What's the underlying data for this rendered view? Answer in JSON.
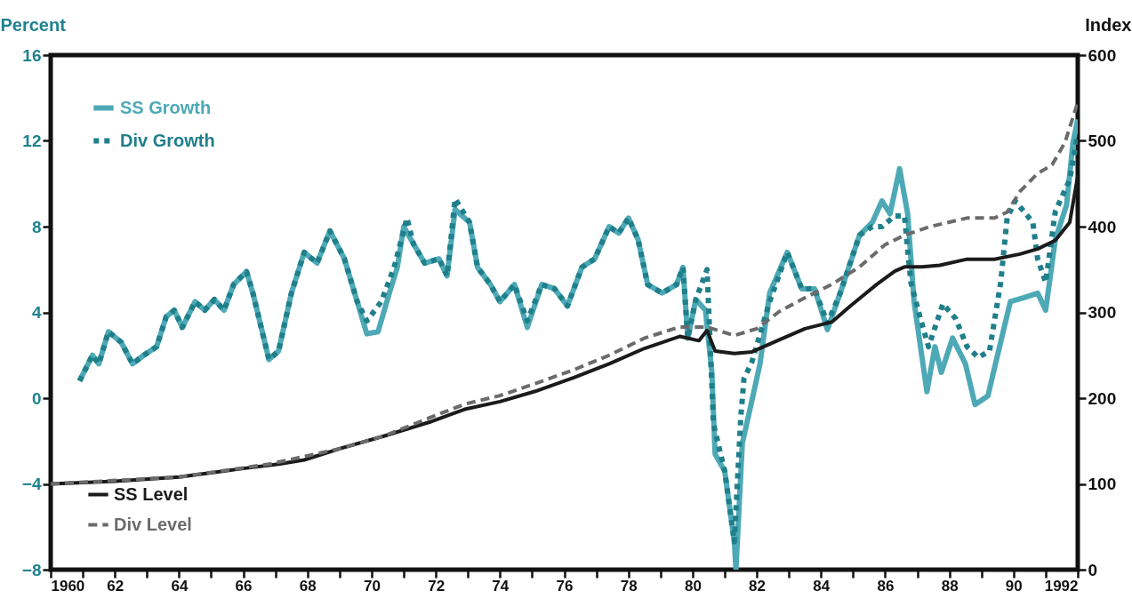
{
  "chart_data": {
    "type": "line",
    "ylabel": "Percent",
    "y2label": "Index",
    "legend": "left",
    "grid": false,
    "xlim": [
      1960,
      1992
    ],
    "xticks": [
      1960,
      {
        "value": 1961,
        "label": null
      },
      {
        "value": 1962,
        "label": "62"
      },
      {
        "value": 1963,
        "label": null
      },
      {
        "value": 1964,
        "label": "64"
      },
      {
        "value": 1965,
        "label": null
      },
      {
        "value": 1966,
        "label": "66"
      },
      {
        "value": 1967,
        "label": null
      },
      {
        "value": 1968,
        "label": "68"
      },
      {
        "value": 1969,
        "label": null
      },
      {
        "value": 1970,
        "label": "70"
      },
      {
        "value": 1971,
        "label": null
      },
      {
        "value": 1972,
        "label": "72"
      },
      {
        "value": 1973,
        "label": null
      },
      {
        "value": 1974,
        "label": "74"
      },
      {
        "value": 1975,
        "label": null
      },
      {
        "value": 1976,
        "label": "76"
      },
      {
        "value": 1977,
        "label": null
      },
      {
        "value": 1978,
        "label": "78"
      },
      {
        "value": 1979,
        "label": null
      },
      {
        "value": 1980,
        "label": "80"
      },
      {
        "value": 1981,
        "label": null
      },
      {
        "value": 1982,
        "label": "82"
      },
      {
        "value": 1983,
        "label": null
      },
      {
        "value": 1984,
        "label": "84"
      },
      {
        "value": 1985,
        "label": null
      },
      {
        "value": 1986,
        "label": "86"
      },
      {
        "value": 1987,
        "label": null
      },
      {
        "value": 1988,
        "label": "88"
      },
      {
        "value": 1989,
        "label": null
      },
      {
        "value": 1990,
        "label": "90"
      },
      {
        "value": 1991,
        "label": null
      },
      1992
    ],
    "ylim": [
      -8,
      16
    ],
    "yticks": [
      -8,
      -4,
      0,
      4,
      8,
      12,
      16
    ],
    "y2lim": [
      0,
      600
    ],
    "y2ticks": [
      0,
      100,
      200,
      300,
      400,
      500,
      600
    ],
    "series": [
      {
        "name": "SS Growth",
        "color": "#4ea9b6",
        "line_style": "solid",
        "axis": "y",
        "x": [
          1960.9,
          1961.3,
          1961.5,
          1961.8,
          1962.2,
          1962.55,
          1962.9,
          1963.3,
          1963.6,
          1963.85,
          1964.1,
          1964.5,
          1964.8,
          1965.1,
          1965.4,
          1965.7,
          1966.1,
          1966.3,
          1966.8,
          1967.1,
          1967.5,
          1967.9,
          1968.3,
          1968.7,
          1969.15,
          1969.55,
          1969.85,
          1970.2,
          1970.55,
          1970.8,
          1971.0,
          1971.3,
          1971.65,
          1972.1,
          1972.35,
          1972.6,
          1973.05,
          1973.3,
          1973.7,
          1974.0,
          1974.45,
          1974.85,
          1975.3,
          1975.7,
          1976.1,
          1976.55,
          1976.95,
          1977.4,
          1977.7,
          1978.0,
          1978.3,
          1978.6,
          1979.05,
          1979.5,
          1979.7,
          1979.85,
          1980.1,
          1980.4,
          1980.6,
          1980.7,
          1981.0,
          1981.3,
          1981.35,
          1981.55,
          1981.85,
          1982.1,
          1982.4,
          1982.95,
          1983.4,
          1983.8,
          1984.2,
          1984.6,
          1985.2,
          1985.6,
          1985.9,
          1986.15,
          1986.45,
          1986.7,
          1986.9,
          1987.3,
          1987.55,
          1987.75,
          1988.1,
          1988.5,
          1988.8,
          1989.2,
          1989.5,
          1989.9,
          1990.35,
          1990.75,
          1991.0,
          1991.3,
          1991.65,
          1991.85,
          1992.0
        ],
        "values": [
          0.8,
          2.0,
          1.6,
          3.1,
          2.6,
          1.6,
          2.0,
          2.4,
          3.8,
          4.1,
          3.3,
          4.5,
          4.1,
          4.6,
          4.1,
          5.3,
          5.9,
          4.9,
          1.8,
          2.2,
          4.9,
          6.8,
          6.3,
          7.8,
          6.5,
          4.5,
          3.0,
          3.1,
          4.9,
          6.1,
          8.0,
          7.2,
          6.3,
          6.5,
          5.7,
          8.8,
          8.2,
          6.1,
          5.3,
          4.5,
          5.3,
          3.3,
          5.3,
          5.1,
          4.3,
          6.1,
          6.5,
          8.0,
          7.7,
          8.4,
          7.4,
          5.3,
          4.9,
          5.3,
          6.1,
          2.8,
          4.6,
          4.1,
          1.2,
          -2.6,
          -3.4,
          -6.7,
          -8.0,
          -2.1,
          -0.1,
          1.6,
          4.9,
          6.8,
          5.1,
          5.1,
          3.2,
          4.9,
          7.6,
          8.2,
          9.2,
          8.6,
          10.7,
          8.6,
          4.5,
          0.3,
          2.4,
          1.2,
          2.8,
          1.6,
          -0.3,
          0.1,
          2.0,
          4.5,
          4.7,
          4.9,
          4.1,
          7.4,
          9.0,
          11.9,
          13.0
        ]
      },
      {
        "name": "Div Growth",
        "color": "#1f7f8a",
        "line_style": "dotted",
        "axis": "y",
        "x": [
          1960.9,
          1961.3,
          1961.5,
          1961.8,
          1962.2,
          1962.55,
          1962.9,
          1963.3,
          1963.6,
          1963.85,
          1964.1,
          1964.5,
          1964.8,
          1965.1,
          1965.4,
          1965.7,
          1966.1,
          1966.3,
          1966.8,
          1967.1,
          1967.5,
          1967.9,
          1968.3,
          1968.7,
          1969.15,
          1969.55,
          1969.85,
          1970.3,
          1970.7,
          1971.1,
          1971.3,
          1971.65,
          1972.1,
          1972.35,
          1972.6,
          1973.05,
          1973.3,
          1973.7,
          1974.0,
          1974.45,
          1974.85,
          1975.3,
          1975.7,
          1976.1,
          1976.55,
          1976.95,
          1977.4,
          1977.7,
          1978.0,
          1978.3,
          1978.6,
          1979.05,
          1979.5,
          1979.7,
          1979.85,
          1980.1,
          1980.45,
          1980.65,
          1981.0,
          1981.3,
          1981.5,
          1981.6,
          1981.85,
          1982.4,
          1982.95,
          1983.4,
          1983.8,
          1984.2,
          1984.6,
          1985.2,
          1985.6,
          1985.9,
          1986.3,
          1986.6,
          1986.8,
          1987.1,
          1987.35,
          1987.8,
          1988.2,
          1988.55,
          1988.9,
          1989.25,
          1989.6,
          1989.8,
          1990.05,
          1990.6,
          1990.75,
          1991.0,
          1991.3,
          1991.75,
          1992.0
        ],
        "values": [
          0.8,
          2.0,
          1.6,
          3.1,
          2.6,
          1.6,
          2.0,
          2.4,
          3.8,
          4.1,
          3.3,
          4.5,
          4.1,
          4.6,
          4.1,
          5.3,
          5.9,
          4.9,
          1.8,
          2.2,
          4.9,
          6.8,
          6.3,
          7.8,
          6.5,
          4.5,
          3.6,
          4.5,
          6.1,
          8.4,
          7.2,
          6.3,
          6.5,
          5.7,
          9.3,
          8.2,
          6.1,
          5.3,
          4.5,
          5.3,
          3.6,
          5.3,
          5.1,
          4.3,
          6.1,
          6.5,
          8.0,
          7.7,
          8.4,
          7.4,
          5.3,
          4.9,
          5.3,
          6.1,
          2.8,
          4.6,
          6.0,
          -1.2,
          -3.4,
          -6.7,
          -0.9,
          0.9,
          1.7,
          4.5,
          6.8,
          5.1,
          5.1,
          3.5,
          4.9,
          7.6,
          8.0,
          8.0,
          8.5,
          8.5,
          5.4,
          3.7,
          2.4,
          4.4,
          3.7,
          2.4,
          1.9,
          2.2,
          5.4,
          8.4,
          9.2,
          8.2,
          6.5,
          5.4,
          8.7,
          10.2,
          12.3
        ]
      },
      {
        "name": "SS Level",
        "color": "#1b1b1b",
        "line_style": "solid",
        "axis": "y2",
        "x": [
          1960,
          1962,
          1964,
          1966,
          1967.1,
          1967.9,
          1969,
          1970.4,
          1971.8,
          1972.9,
          1974,
          1975.1,
          1976.3,
          1977.4,
          1978.5,
          1979.6,
          1980.2,
          1980.45,
          1980.7,
          1981.3,
          1981.85,
          1982.7,
          1983.5,
          1984.35,
          1984.9,
          1985.75,
          1986.3,
          1986.6,
          1987.15,
          1987.7,
          1988.55,
          1989.4,
          1990.2,
          1990.75,
          1991.3,
          1991.75,
          1992.0
        ],
        "values": [
          100,
          103,
          108,
          118,
          123,
          128,
          141,
          156,
          172,
          187,
          196,
          208,
          224,
          240,
          258,
          272,
          267,
          279,
          255,
          252,
          254,
          268,
          281,
          289,
          307,
          333,
          348,
          353,
          353,
          355,
          362,
          362,
          368,
          374,
          384,
          405,
          459
        ]
      },
      {
        "name": "Div Level",
        "color": "#6b6b6b",
        "line_style": "dashed",
        "axis": "y2",
        "x": [
          1960,
          1964,
          1966.8,
          1969,
          1970.4,
          1971.8,
          1972.9,
          1974,
          1975.1,
          1976.3,
          1977.4,
          1978.5,
          1979.6,
          1980.45,
          1981.3,
          1982,
          1982.7,
          1983.5,
          1984.35,
          1985.2,
          1986,
          1986.6,
          1987.4,
          1988.55,
          1989.4,
          1989.8,
          1990.2,
          1990.75,
          1991.2,
          1991.6,
          1992.0
        ],
        "values": [
          100,
          108,
          123,
          141,
          156,
          177,
          193,
          203,
          217,
          233,
          250,
          270,
          283,
          283,
          273,
          281,
          301,
          317,
          333,
          353,
          379,
          390,
          400,
          410,
          410,
          417,
          441,
          462,
          472,
          498,
          545
        ]
      }
    ]
  }
}
